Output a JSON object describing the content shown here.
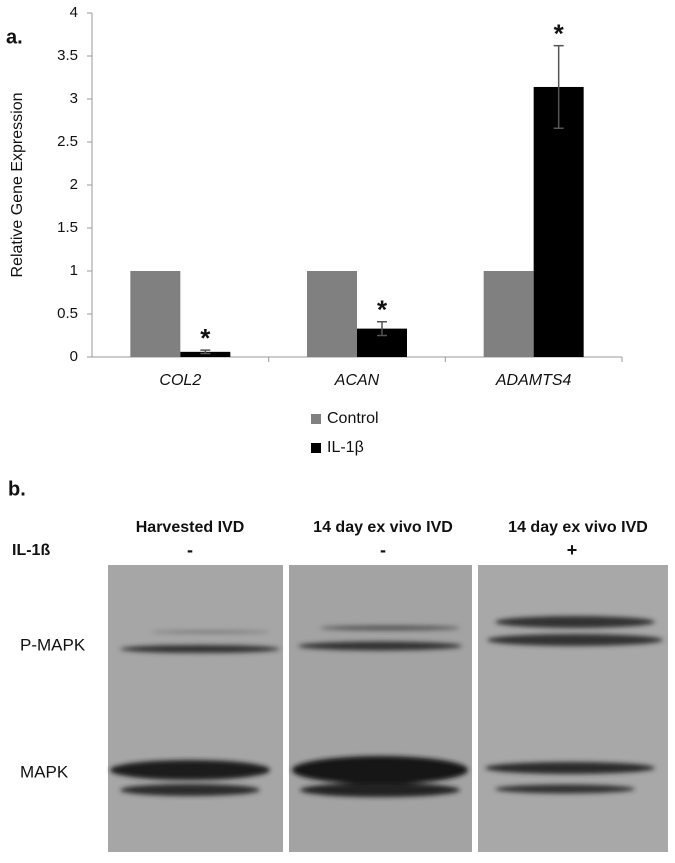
{
  "chart_data": {
    "type": "bar",
    "panel_label": "a.",
    "ylabel": "Relative Gene Expression",
    "categories": [
      "COL2",
      "ACAN",
      "ADAMTS4"
    ],
    "series": [
      {
        "name": "Control",
        "color": "#808080",
        "values": [
          1,
          1,
          1
        ]
      },
      {
        "name": "IL-1β",
        "color": "#000000",
        "values": [
          0.06,
          0.33,
          3.14
        ],
        "errors": [
          0.02,
          0.08,
          0.48
        ],
        "annotations": [
          "*",
          "*",
          "*"
        ]
      }
    ],
    "ylim": [
      0,
      4
    ],
    "yticks": [
      0,
      0.5,
      1,
      1.5,
      2,
      2.5,
      3,
      3.5,
      4
    ],
    "grid": false,
    "legend": "bottom"
  },
  "blot": {
    "panel_label": "b.",
    "column_headers": [
      "Harvested IVD",
      "14 day ex vivo IVD",
      "14 day ex vivo IVD"
    ],
    "treatment_label": "IL-1ß",
    "treatment": [
      "-",
      "-",
      "+"
    ],
    "row_labels": [
      "P-MAPK",
      "MAPK"
    ]
  }
}
